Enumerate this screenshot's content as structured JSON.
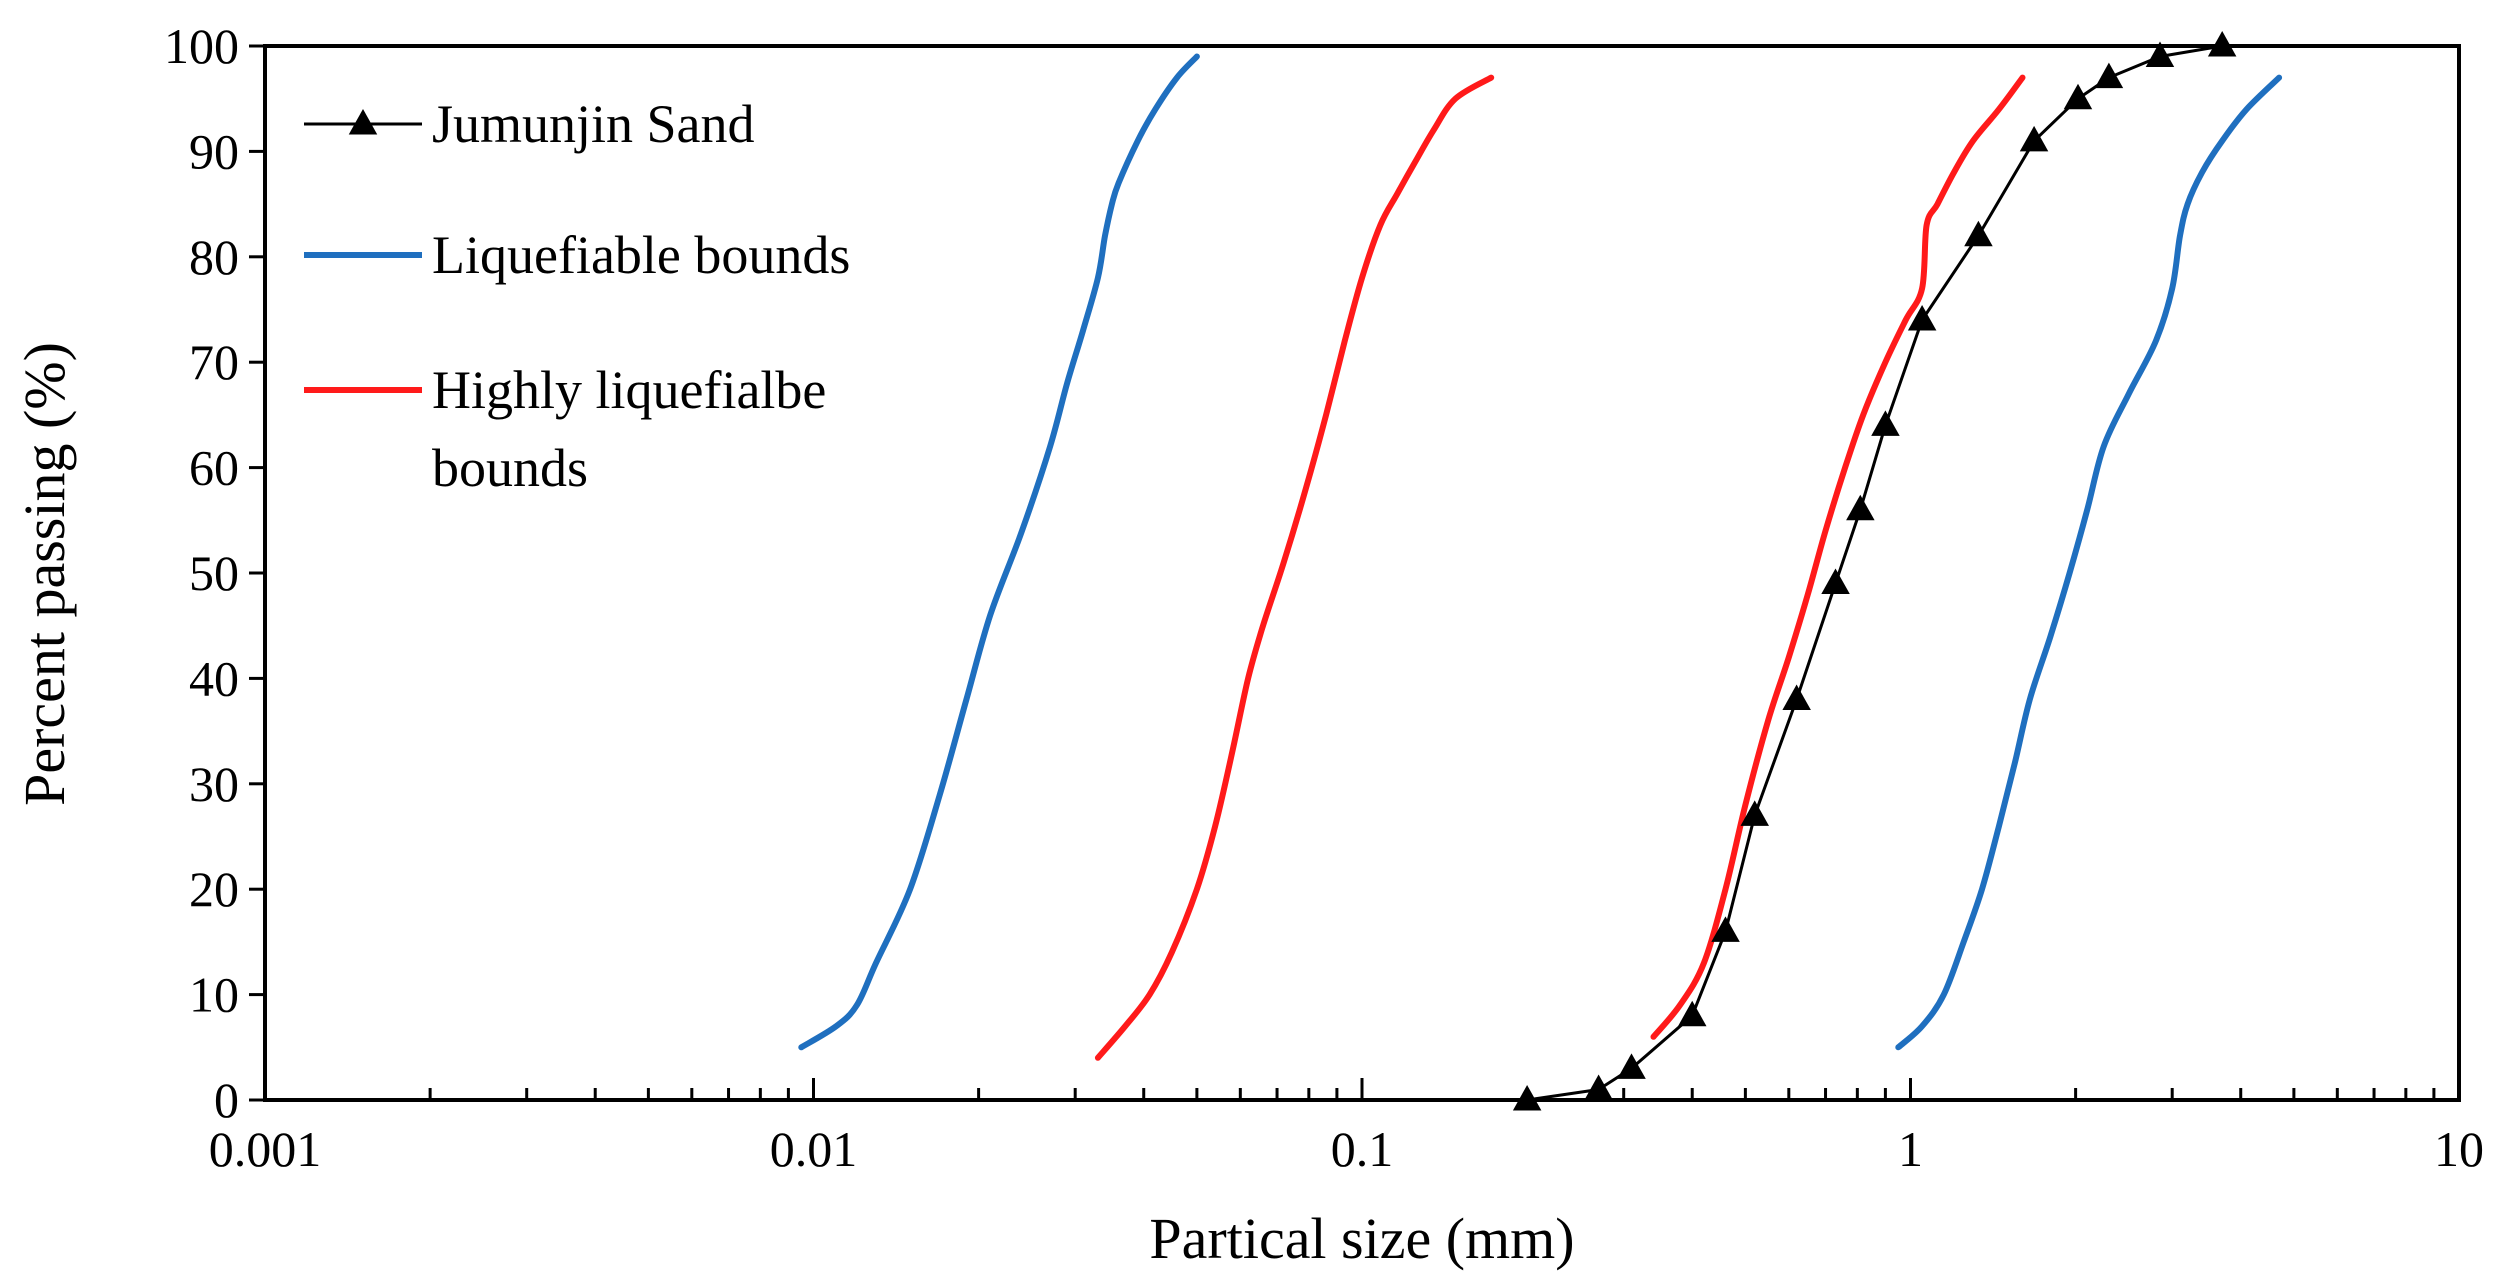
{
  "chart_data": {
    "type": "line",
    "title": "",
    "xlabel": "Partical size (mm)",
    "ylabel": "Percent passing  (%)",
    "xscale": "log",
    "xlim": [
      0.001,
      10
    ],
    "ylim": [
      0,
      100
    ],
    "x_ticks": [
      0.001,
      0.01,
      0.1,
      1,
      10
    ],
    "x_tick_labels": [
      "0.001",
      "0.01",
      "0.1",
      "1",
      "10"
    ],
    "y_ticks": [
      0,
      10,
      20,
      30,
      40,
      50,
      60,
      70,
      80,
      90,
      100
    ],
    "y_tick_labels": [
      "0",
      "10",
      "20",
      "30",
      "40",
      "50",
      "60",
      "70",
      "80",
      "90",
      "100"
    ],
    "grid": false,
    "legend_position": "top-left",
    "series": [
      {
        "name": "Jumunjin Sand",
        "legend_label": [
          "Jumunjin Sand"
        ],
        "color": "#000000",
        "marker": "triangle",
        "x": [
          0.2,
          0.27,
          0.31,
          0.4,
          0.46,
          0.52,
          0.62,
          0.73,
          0.81,
          0.9,
          1.05,
          1.33,
          1.68,
          2.02,
          2.3,
          2.85,
          3.7
        ],
        "y": [
          0,
          1,
          3,
          8,
          16,
          27,
          38,
          49,
          56,
          64,
          74,
          82,
          91,
          95,
          97,
          99,
          100
        ]
      },
      {
        "name": "Liquefiable bounds (fine)",
        "legend_label": [
          "Liquefiable bounds"
        ],
        "color": "#1f6fbf",
        "marker": "none",
        "x": [
          0.0095,
          0.011,
          0.012,
          0.013,
          0.015,
          0.017,
          0.019,
          0.021,
          0.024,
          0.027,
          0.029,
          0.031,
          0.033,
          0.034,
          0.035,
          0.036,
          0.039,
          0.042,
          0.046,
          0.05
        ],
        "y": [
          5,
          7,
          9,
          13,
          20,
          29,
          38,
          46,
          54,
          62,
          68,
          73,
          78,
          82,
          85,
          87,
          91,
          94,
          97,
          99
        ]
      },
      {
        "name": "Liquefiable bounds (coarse)",
        "legend_label": [],
        "color": "#1f6fbf",
        "marker": "none",
        "x": [
          0.95,
          1.05,
          1.15,
          1.25,
          1.35,
          1.45,
          1.55,
          1.65,
          1.8,
          1.95,
          2.1,
          2.25,
          2.5,
          2.8,
          3.0,
          3.1,
          3.2,
          3.4,
          3.7,
          4.1,
          4.7
        ],
        "y": [
          5,
          7,
          10,
          15,
          20,
          26,
          32,
          38,
          44,
          50,
          56,
          62,
          67,
          72,
          77,
          82,
          85,
          88,
          91,
          94,
          97
        ]
      },
      {
        "name": "Highly liquefiable bounds (fine)",
        "legend_label": [
          "Highly liquefialbe",
          "bounds"
        ],
        "color": "#ff1a1a",
        "marker": "none",
        "x": [
          0.033,
          0.037,
          0.041,
          0.045,
          0.05,
          0.054,
          0.058,
          0.062,
          0.066,
          0.072,
          0.079,
          0.086,
          0.093,
          0.1,
          0.108,
          0.116,
          0.125,
          0.135,
          0.148,
          0.172
        ],
        "y": [
          4,
          7,
          10,
          14,
          20,
          26,
          33,
          40,
          45,
          51,
          58,
          65,
          72,
          78,
          83,
          86,
          89,
          92,
          95,
          97
        ]
      },
      {
        "name": "Highly liquefiable bounds (coarse)",
        "legend_label": [],
        "color": "#ff1a1a",
        "marker": "none",
        "x": [
          0.34,
          0.38,
          0.42,
          0.46,
          0.5,
          0.55,
          0.6,
          0.65,
          0.7,
          0.76,
          0.82,
          0.9,
          0.98,
          1.05,
          1.07,
          1.12,
          1.2,
          1.3,
          1.45,
          1.6
        ],
        "y": [
          6,
          9,
          13,
          20,
          28,
          36,
          42,
          48,
          54,
          60,
          65,
          70,
          74,
          77,
          83,
          85,
          88,
          91,
          94,
          97
        ]
      }
    ]
  }
}
